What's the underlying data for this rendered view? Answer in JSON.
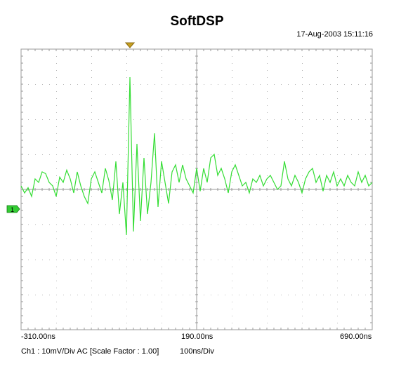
{
  "window": {
    "title": "SoftDSP",
    "datetime": "17-Aug-2003 15:11:16"
  },
  "axis": {
    "x_left": "-310.00ns",
    "x_center": "190.00ns",
    "x_right": "690.00ns"
  },
  "status": {
    "channel_info": "Ch1 : 10mV/Div  AC  [Scale Factor : 1.00]",
    "timebase": "100ns/Div"
  },
  "channel_marker": {
    "label": "1",
    "color": "#33cc33"
  },
  "trigger_marker": {
    "color": "#c8a020"
  },
  "trace": {
    "color": "#33dd33"
  },
  "chart_data": {
    "type": "line",
    "x_range_ns": [
      -310,
      690
    ],
    "y_divisions": 8,
    "x_divisions": 10,
    "grid": true,
    "series": [
      {
        "x": [
          -310,
          -300,
          -290,
          -280,
          -270,
          -260,
          -250,
          -240,
          -230,
          -220,
          -210,
          -200,
          -190,
          -180,
          -170,
          -160,
          -150,
          -140,
          -130,
          -120,
          -110,
          -100,
          -90,
          -80,
          -70,
          -60,
          -50,
          -40,
          -30,
          -20,
          -10,
          0,
          10,
          20,
          30,
          40,
          50,
          60,
          70,
          80,
          90,
          100,
          110,
          120,
          130,
          140,
          150,
          160,
          170,
          180,
          190,
          200,
          210,
          220,
          230,
          240,
          250,
          260,
          270,
          280,
          290,
          300,
          310,
          320,
          330,
          340,
          350,
          360,
          370,
          380,
          390,
          400,
          410,
          420,
          430,
          440,
          450,
          460,
          470,
          480,
          490,
          500,
          510,
          520,
          530,
          540,
          550,
          560,
          570,
          580,
          590,
          600,
          610,
          620,
          630,
          640,
          650,
          660,
          670,
          680,
          690
        ],
        "y": [
          0.1,
          -0.1,
          0.05,
          -0.2,
          0.3,
          0.2,
          0.5,
          0.45,
          0.2,
          0.1,
          -0.2,
          0.35,
          0.2,
          0.55,
          0.3,
          -0.1,
          0.5,
          0.1,
          -0.2,
          -0.4,
          0.3,
          0.5,
          0.2,
          -0.1,
          0.6,
          0.25,
          -0.3,
          0.8,
          -0.7,
          0.2,
          -1.3,
          3.2,
          -1.2,
          1.3,
          -0.9,
          0.9,
          -0.7,
          0.2,
          1.6,
          -0.5,
          0.8,
          0.2,
          -0.4,
          0.5,
          0.7,
          0.2,
          0.7,
          0.3,
          0.1,
          -0.1,
          0.6,
          -0.05,
          0.6,
          0.2,
          0.9,
          1.0,
          0.4,
          0.6,
          0.3,
          -0.1,
          0.5,
          0.7,
          0.4,
          0.1,
          0.2,
          -0.1,
          0.3,
          0.2,
          0.4,
          0.1,
          0.3,
          0.4,
          0.2,
          0.0,
          0.1,
          0.8,
          0.3,
          0.1,
          0.4,
          0.2,
          -0.1,
          0.3,
          0.5,
          0.6,
          0.2,
          0.4,
          -0.05,
          0.4,
          0.2,
          0.5,
          0.1,
          0.3,
          0.1,
          0.4,
          0.2,
          0.1,
          0.5,
          0.2,
          0.4,
          0.1,
          0.2
        ]
      }
    ]
  }
}
